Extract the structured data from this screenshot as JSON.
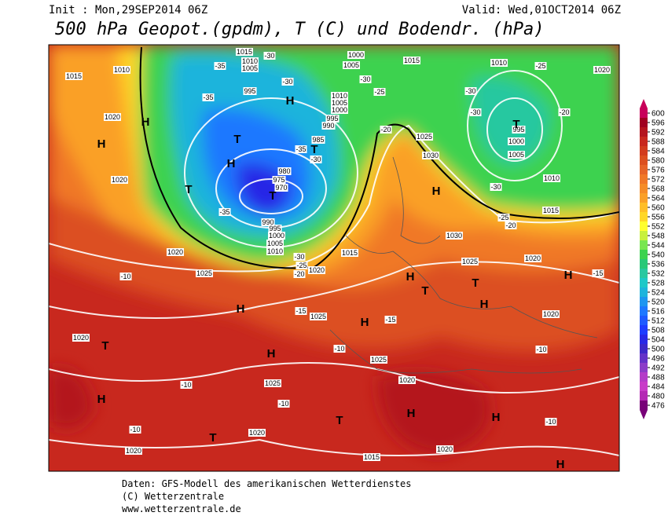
{
  "header": {
    "init": "Init : Mon,29SEP2014 06Z",
    "valid": "Valid: Wed,01OCT2014 06Z",
    "title": "500 hPa Geopot.(gpdm), T (C) und Bodendr. (hPa)"
  },
  "map": {
    "isobar_labels": [
      "1015",
      "1010",
      "1005",
      "1000",
      "1005",
      "1015",
      "1010",
      "1010",
      "1015",
      "995",
      "1010",
      "1005",
      "1000",
      "995",
      "990",
      "985",
      "980",
      "975",
      "970",
      "990",
      "995",
      "1000",
      "1005",
      "1010",
      "1020",
      "1020",
      "1025",
      "1030",
      "1030",
      "1025",
      "1020",
      "1015",
      "1020",
      "1020",
      "1025",
      "1025",
      "1020",
      "1025",
      "1025",
      "1020",
      "1020",
      "1020",
      "1015",
      "1020",
      "1020",
      "1010",
      "1015",
      "1000",
      "1005",
      "995",
      "1020"
    ],
    "pressure_centers": [
      "H",
      "H",
      "H",
      "T",
      "T",
      "H",
      "T",
      "T",
      "H",
      "T",
      "H",
      "T",
      "T",
      "H",
      "H",
      "H",
      "H",
      "T",
      "H",
      "H",
      "T",
      "T",
      "H",
      "H",
      "H"
    ],
    "temperature_labels": [
      "-30",
      "-35",
      "-30",
      "-25",
      "-30",
      "-25",
      "-30",
      "-20",
      "-35",
      "-30",
      "-30",
      "-35",
      "-30",
      "-35",
      "-25",
      "-20",
      "-30",
      "-25",
      "-20",
      "-10",
      "-15",
      "-15",
      "-10",
      "-15",
      "-10",
      "-10",
      "-10",
      "-10",
      "-20",
      "-10"
    ]
  },
  "colorbar": {
    "ticks": [
      600,
      596,
      592,
      588,
      584,
      580,
      576,
      572,
      568,
      564,
      560,
      556,
      552,
      548,
      544,
      540,
      536,
      532,
      528,
      524,
      520,
      516,
      512,
      508,
      504,
      500,
      496,
      492,
      488,
      484,
      480,
      476
    ],
    "colors": [
      "#c8005a",
      "#a00020",
      "#b4141e",
      "#c8281e",
      "#d23c1e",
      "#dc5020",
      "#e66428",
      "#f07828",
      "#f58c28",
      "#faa028",
      "#ffbe28",
      "#ffd728",
      "#ffff30",
      "#c8f03c",
      "#78e650",
      "#3cd250",
      "#28c878",
      "#28c8a0",
      "#1ec8c8",
      "#1eb4dc",
      "#1e96f0",
      "#1e78ff",
      "#1e5aff",
      "#1e3cff",
      "#2828e6",
      "#3c28c8",
      "#6432c8",
      "#8c3cc8",
      "#b43cc8",
      "#c83cc8",
      "#b428b4",
      "#780078"
    ]
  },
  "footer": {
    "source": "Daten: GFS-Modell des amerikanischen Wetterdienstes",
    "copyright": "(C) Wetterzentrale",
    "url": "www.wetterzentrale.de"
  }
}
